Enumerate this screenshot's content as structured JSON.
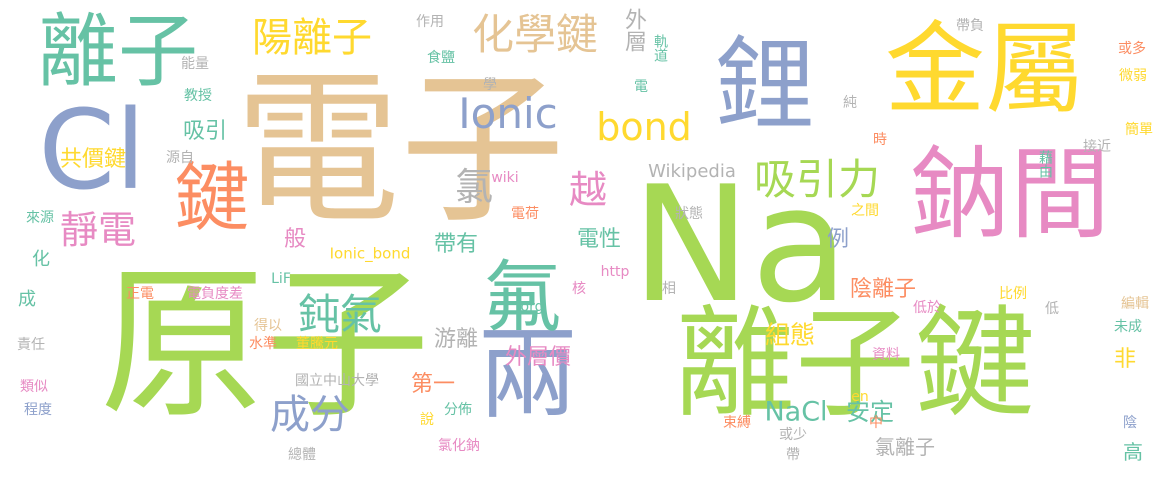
{
  "colors": {
    "green": "#a6d854",
    "teal": "#66c2a5",
    "blue": "#8da0cb",
    "tan": "#e5c494",
    "orange": "#fc8d62",
    "pink": "#e78ac3",
    "yellow": "#ffd92f",
    "gray": "#b3b3b3"
  },
  "words": [
    {
      "text": "原子",
      "color": "green"
    },
    {
      "text": "電子",
      "color": "tan"
    },
    {
      "text": "Na",
      "color": "green"
    },
    {
      "text": "離子鍵",
      "color": "green"
    },
    {
      "text": "金屬",
      "color": "yellow"
    },
    {
      "text": "鋰",
      "color": "blue"
    },
    {
      "text": "鈉間",
      "color": "pink"
    },
    {
      "text": "Cl",
      "color": "blue"
    },
    {
      "text": "離子",
      "color": "teal"
    },
    {
      "text": "兩",
      "color": "blue"
    },
    {
      "text": "鍵",
      "color": "orange"
    },
    {
      "text": "氟",
      "color": "teal"
    },
    {
      "text": "化學鍵",
      "color": "tan"
    },
    {
      "text": "陽離子",
      "color": "yellow"
    },
    {
      "text": "吸引力",
      "color": "green"
    },
    {
      "text": "Ionic",
      "color": "blue"
    },
    {
      "text": "bond",
      "color": "yellow"
    },
    {
      "text": "鈍氣",
      "color": "teal"
    },
    {
      "text": "靜電",
      "color": "pink"
    },
    {
      "text": "成分",
      "color": "blue"
    },
    {
      "text": "氯",
      "color": "gray"
    },
    {
      "text": "越",
      "color": "pink"
    },
    {
      "text": "外層",
      "color": "gray"
    },
    {
      "text": "吸引",
      "color": "teal"
    },
    {
      "text": "共價鍵",
      "color": "yellow"
    },
    {
      "text": "電性",
      "color": "teal"
    },
    {
      "text": "帶有",
      "color": "teal"
    },
    {
      "text": "般",
      "color": "pink"
    },
    {
      "text": "例",
      "color": "blue"
    },
    {
      "text": "陰離子",
      "color": "orange"
    },
    {
      "text": "組態",
      "color": "yellow"
    },
    {
      "text": "NaCl",
      "color": "teal"
    },
    {
      "text": "安定",
      "color": "teal"
    },
    {
      "text": "氯離子",
      "color": "gray"
    },
    {
      "text": "外層價",
      "color": "pink"
    },
    {
      "text": "游離",
      "color": "gray"
    },
    {
      "text": "第一",
      "color": "orange"
    },
    {
      "text": "非",
      "color": "yellow"
    },
    {
      "text": "高",
      "color": "teal"
    },
    {
      "text": "Wikipedia",
      "color": "gray"
    },
    {
      "text": "Ionic_bond",
      "color": "yellow"
    },
    {
      "text": "化",
      "color": "teal"
    },
    {
      "text": "成",
      "color": "teal"
    },
    {
      "text": "作用",
      "color": "gray"
    },
    {
      "text": "食鹽",
      "color": "teal"
    },
    {
      "text": "能量",
      "color": "gray"
    },
    {
      "text": "教授",
      "color": "teal"
    },
    {
      "text": "源自",
      "color": "gray"
    },
    {
      "text": "來源",
      "color": "teal"
    },
    {
      "text": "軌道",
      "color": "teal"
    },
    {
      "text": "學",
      "color": "gray"
    },
    {
      "text": "電",
      "color": "teal"
    },
    {
      "text": "純",
      "color": "gray"
    },
    {
      "text": "時",
      "color": "orange"
    },
    {
      "text": "藉由",
      "color": "teal"
    },
    {
      "text": "接近",
      "color": "gray"
    },
    {
      "text": "帶負",
      "color": "gray"
    },
    {
      "text": "或多",
      "color": "orange"
    },
    {
      "text": "微弱",
      "color": "yellow"
    },
    {
      "text": "簡單",
      "color": "yellow"
    },
    {
      "text": "wiki",
      "color": "pink"
    },
    {
      "text": "電荷",
      "color": "orange"
    },
    {
      "text": "狀態",
      "color": "gray"
    },
    {
      "text": "之間",
      "color": "yellow"
    },
    {
      "text": "LiF",
      "color": "teal"
    },
    {
      "text": "http",
      "color": "pink"
    },
    {
      "text": "org",
      "color": "teal"
    },
    {
      "text": "正電",
      "color": "orange"
    },
    {
      "text": "電負度差",
      "color": "pink"
    },
    {
      "text": "得以",
      "color": "tan"
    },
    {
      "text": "水準",
      "color": "orange"
    },
    {
      "text": "董騰元",
      "color": "yellow"
    },
    {
      "text": "核",
      "color": "pink"
    },
    {
      "text": "相",
      "color": "gray"
    },
    {
      "text": "比例",
      "color": "yellow"
    },
    {
      "text": "低於",
      "color": "pink"
    },
    {
      "text": "低",
      "color": "gray"
    },
    {
      "text": "資料",
      "color": "pink"
    },
    {
      "text": "編輯",
      "color": "tan"
    },
    {
      "text": "未成",
      "color": "teal"
    },
    {
      "text": "責任",
      "color": "gray"
    },
    {
      "text": "類似",
      "color": "pink"
    },
    {
      "text": "程度",
      "color": "blue"
    },
    {
      "text": "國立中山大學",
      "color": "gray"
    },
    {
      "text": "分佈",
      "color": "teal"
    },
    {
      "text": "說",
      "color": "yellow"
    },
    {
      "text": "氯化鈉",
      "color": "pink"
    },
    {
      "text": "總體",
      "color": "gray"
    },
    {
      "text": "en",
      "color": "yellow"
    },
    {
      "text": "中",
      "color": "orange"
    },
    {
      "text": "束縛",
      "color": "orange"
    },
    {
      "text": "或少",
      "color": "gray"
    },
    {
      "text": "帶",
      "color": "gray"
    },
    {
      "text": "陰",
      "color": "blue"
    }
  ]
}
